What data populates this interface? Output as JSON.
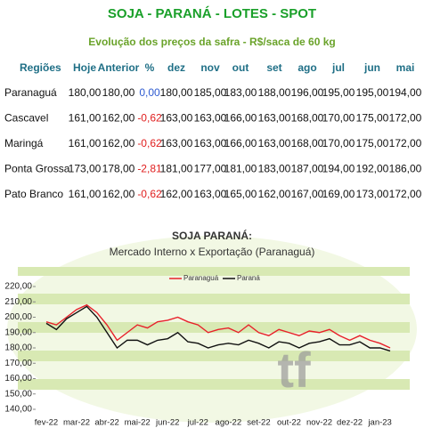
{
  "header": {
    "title": "SOJA - PARANÁ - LOTES - SPOT",
    "subtitle": "Evolução dos preços da safra - R$/saca de 60 kg"
  },
  "table": {
    "columns": [
      "Regiões",
      "Hoje",
      "Anterior",
      "%",
      "dez",
      "nov",
      "out",
      "set",
      "ago",
      "jul",
      "jun",
      "mai"
    ],
    "rows": [
      [
        "Paranaguá",
        "180,00",
        "180,00",
        "0,00",
        "180,00",
        "185,00",
        "183,00",
        "188,00",
        "196,00",
        "195,00",
        "195,00",
        "194,00"
      ],
      [
        "Cascavel",
        "161,00",
        "162,00",
        "-0,62",
        "163,00",
        "163,00",
        "166,00",
        "163,00",
        "168,00",
        "170,00",
        "175,00",
        "172,00"
      ],
      [
        "Maringá",
        "161,00",
        "162,00",
        "-0,62",
        "163,00",
        "163,00",
        "166,00",
        "163,00",
        "168,00",
        "170,00",
        "175,00",
        "172,00"
      ],
      [
        "Ponta Grossa",
        "173,00",
        "178,00",
        "-2,81",
        "181,00",
        "177,00",
        "181,00",
        "183,00",
        "187,00",
        "194,00",
        "192,00",
        "186,00"
      ],
      [
        "Pato Branco",
        "161,00",
        "162,00",
        "-0,62",
        "162,00",
        "163,00",
        "165,00",
        "162,00",
        "167,00",
        "169,00",
        "173,00",
        "172,00"
      ]
    ]
  },
  "chart_data": {
    "type": "line",
    "title": "SOJA PARANÁ:",
    "subtitle": "Mercado Interno x Exportação (Paranaguá)",
    "categories": [
      "fev-22",
      null,
      null,
      "mar-22",
      null,
      null,
      "abr-22",
      null,
      null,
      "mai-22",
      null,
      null,
      "jun-22",
      null,
      null,
      "jul-22",
      null,
      null,
      "ago-22",
      null,
      null,
      "set-22",
      null,
      null,
      "out-22",
      null,
      null,
      "nov-22",
      null,
      null,
      "dez-22",
      null,
      null,
      "jan-23",
      null
    ],
    "series": [
      {
        "name": "Paranaguá",
        "color": "#e8202a",
        "values": [
          197,
          195,
          200,
          205,
          208,
          203,
          195,
          185,
          190,
          195,
          193,
          197,
          198,
          200,
          197,
          195,
          190,
          192,
          193,
          190,
          195,
          190,
          188,
          192,
          190,
          188,
          191,
          190,
          192,
          188,
          185,
          188,
          185,
          183,
          180
        ]
      },
      {
        "name": "Paraná",
        "color": "#111111",
        "values": [
          196,
          192,
          199,
          203,
          207,
          200,
          190,
          180,
          185,
          185,
          182,
          185,
          186,
          190,
          184,
          183,
          180,
          182,
          183,
          182,
          185,
          183,
          180,
          184,
          183,
          180,
          183,
          184,
          186,
          182,
          182,
          184,
          180,
          180,
          178
        ]
      }
    ],
    "ylim": [
      140,
      220
    ],
    "yticks": [
      {
        "value": 140,
        "label": "140,00"
      },
      {
        "value": 150,
        "label": "150,00"
      },
      {
        "value": 160,
        "label": "160,00"
      },
      {
        "value": 170,
        "label": "170,00"
      },
      {
        "value": 180,
        "label": "180,00"
      },
      {
        "value": 190,
        "label": "190,00"
      },
      {
        "value": 200,
        "label": "200,00"
      },
      {
        "value": 210,
        "label": "210,00"
      },
      {
        "value": 220,
        "label": "220,00"
      }
    ]
  }
}
